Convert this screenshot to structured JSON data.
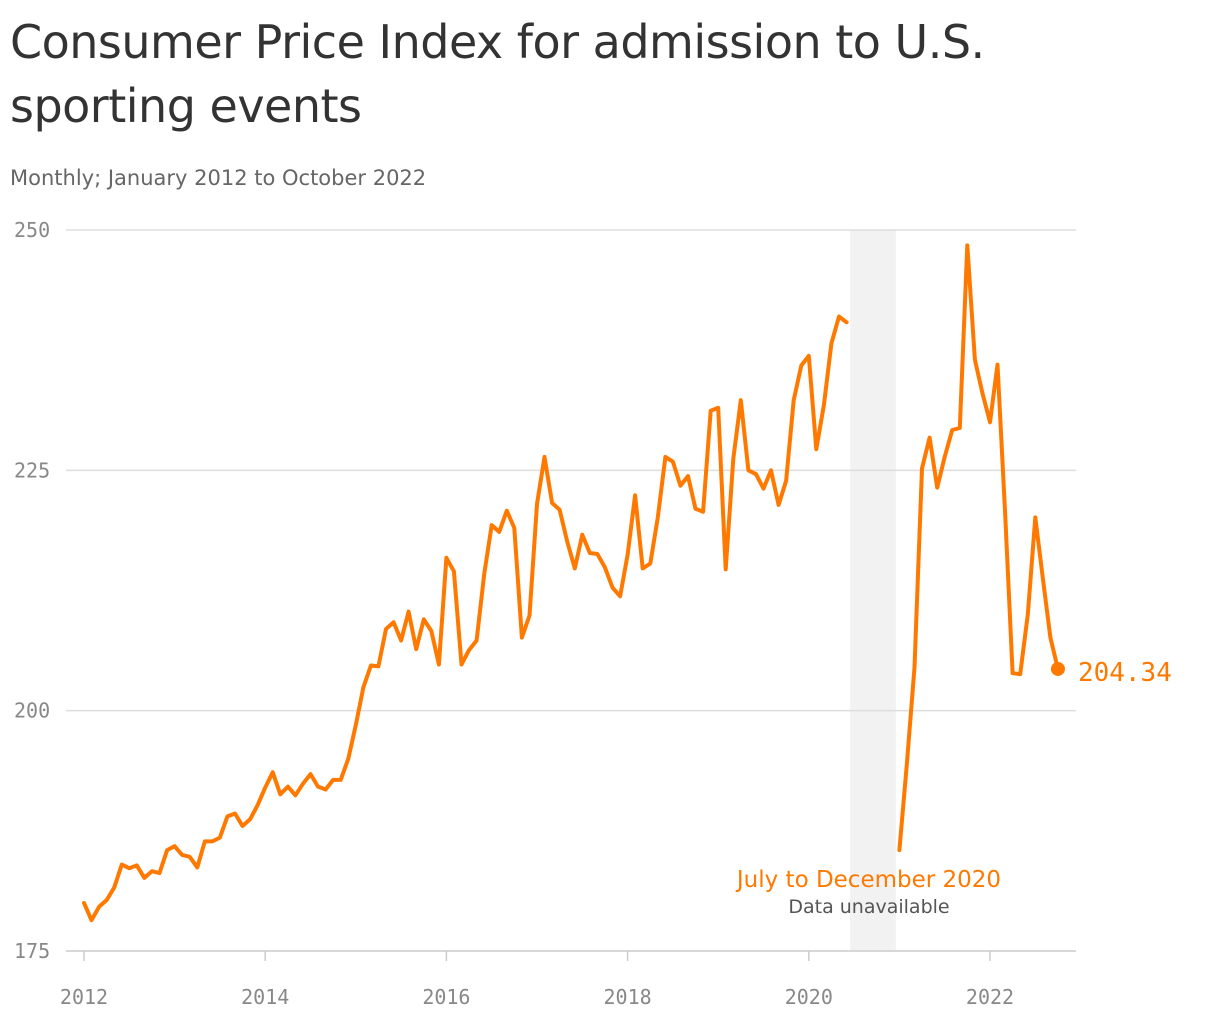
{
  "header": {
    "title": "Consumer Price Index for admission to U.S. sporting events",
    "subtitle": "Monthly; January 2012 to October 2022"
  },
  "colors": {
    "line": "#ff7900",
    "gap_band": "#f2f2f2",
    "grid": "#dddddd",
    "axis": "#cccccc"
  },
  "annotation": {
    "title": "July to December 2020",
    "subtitle": "Data unavailable"
  },
  "chart_data": {
    "type": "line",
    "title": "Consumer Price Index for admission to U.S. sporting events",
    "subtitle": "Monthly; January 2012 to October 2022",
    "xlabel": "",
    "ylabel": "",
    "ylim": [
      175,
      250
    ],
    "yticks": [
      175,
      200,
      225,
      250
    ],
    "xticks": [
      2012,
      2014,
      2016,
      2018,
      2020,
      2022
    ],
    "grid": true,
    "legend": "none",
    "shaded_range": {
      "start": "2020-07",
      "end": "2020-12",
      "label": "July to December 2020",
      "note": "Data unavailable"
    },
    "end_label": "204.34",
    "series": [
      {
        "segments": [
          {
            "x": [
              "2012-01",
              "2012-02",
              "2012-03",
              "2012-04",
              "2012-05",
              "2012-06",
              "2012-07",
              "2012-08",
              "2012-09",
              "2012-10",
              "2012-11",
              "2012-12",
              "2013-01",
              "2013-02",
              "2013-03",
              "2013-04",
              "2013-05",
              "2013-06",
              "2013-07",
              "2013-08",
              "2013-09",
              "2013-10",
              "2013-11",
              "2013-12",
              "2014-01",
              "2014-02",
              "2014-03",
              "2014-04",
              "2014-05",
              "2014-06",
              "2014-07",
              "2014-08",
              "2014-09",
              "2014-10",
              "2014-11",
              "2014-12",
              "2015-01",
              "2015-02",
              "2015-03",
              "2015-04",
              "2015-05",
              "2015-06",
              "2015-07",
              "2015-08",
              "2015-09",
              "2015-10",
              "2015-11",
              "2015-12",
              "2016-01",
              "2016-02",
              "2016-03",
              "2016-04",
              "2016-05",
              "2016-06",
              "2016-07",
              "2016-08",
              "2016-09",
              "2016-10",
              "2016-11",
              "2016-12",
              "2017-01",
              "2017-02",
              "2017-03",
              "2017-04",
              "2017-05",
              "2017-06",
              "2017-07",
              "2017-08",
              "2017-09",
              "2017-10",
              "2017-11",
              "2017-12",
              "2018-01",
              "2018-02",
              "2018-03",
              "2018-04",
              "2018-05",
              "2018-06",
              "2018-07",
              "2018-08",
              "2018-09",
              "2018-10",
              "2018-11",
              "2018-12",
              "2019-01",
              "2019-02",
              "2019-03",
              "2019-04",
              "2019-05",
              "2019-06",
              "2019-07",
              "2019-08",
              "2019-09",
              "2019-10",
              "2019-11",
              "2019-12",
              "2020-01",
              "2020-02",
              "2020-03",
              "2020-04",
              "2020-05",
              "2020-06"
            ],
            "y": [
              180.0,
              178.2,
              179.6,
              180.3,
              181.6,
              184.0,
              183.6,
              183.9,
              182.6,
              183.3,
              183.1,
              185.5,
              185.9,
              185.0,
              184.8,
              183.7,
              186.4,
              186.4,
              186.8,
              189.0,
              189.3,
              188.0,
              188.7,
              190.2,
              192.0,
              193.6,
              191.3,
              192.1,
              191.2,
              192.4,
              193.4,
              192.1,
              191.8,
              192.8,
              192.8,
              195.0,
              198.5,
              202.4,
              204.7,
              204.6,
              208.5,
              209.2,
              207.3,
              210.3,
              206.4,
              209.5,
              208.3,
              204.8,
              215.9,
              214.5,
              204.8,
              206.3,
              207.3,
              214.2,
              219.3,
              218.6,
              220.8,
              219.0,
              207.6,
              209.9,
              221.5,
              226.4,
              221.6,
              220.9,
              217.6,
              214.8,
              218.3,
              216.4,
              216.3,
              214.9,
              212.8,
              211.9,
              216.2,
              222.4,
              214.8,
              215.3,
              220.1,
              226.4,
              225.9,
              223.4,
              224.4,
              221.0,
              220.7,
              231.2,
              231.5,
              214.7,
              226.2,
              232.3,
              225.0,
              224.6,
              223.1,
              225.0,
              221.4,
              223.9,
              232.3,
              235.9,
              236.9,
              227.2,
              231.8,
              238.2,
              241.0,
              240.4
            ]
          },
          {
            "x": [
              "2021-01",
              "2021-02",
              "2021-03",
              "2021-04",
              "2021-05",
              "2021-06",
              "2021-07",
              "2021-08",
              "2021-09",
              "2021-10",
              "2021-11",
              "2021-12",
              "2022-01",
              "2022-02",
              "2022-03",
              "2022-04",
              "2022-05",
              "2022-06",
              "2022-07",
              "2022-08",
              "2022-09",
              "2022-10"
            ],
            "y": [
              185.5,
              194.5,
              204.5,
              225.2,
              228.4,
              223.2,
              226.4,
              229.2,
              229.4,
              248.4,
              236.5,
              233.0,
              230.0,
              236.0,
              220.6,
              203.9,
              203.8,
              210.0,
              220.1,
              213.8,
              207.6,
              204.34
            ]
          }
        ]
      }
    ]
  }
}
